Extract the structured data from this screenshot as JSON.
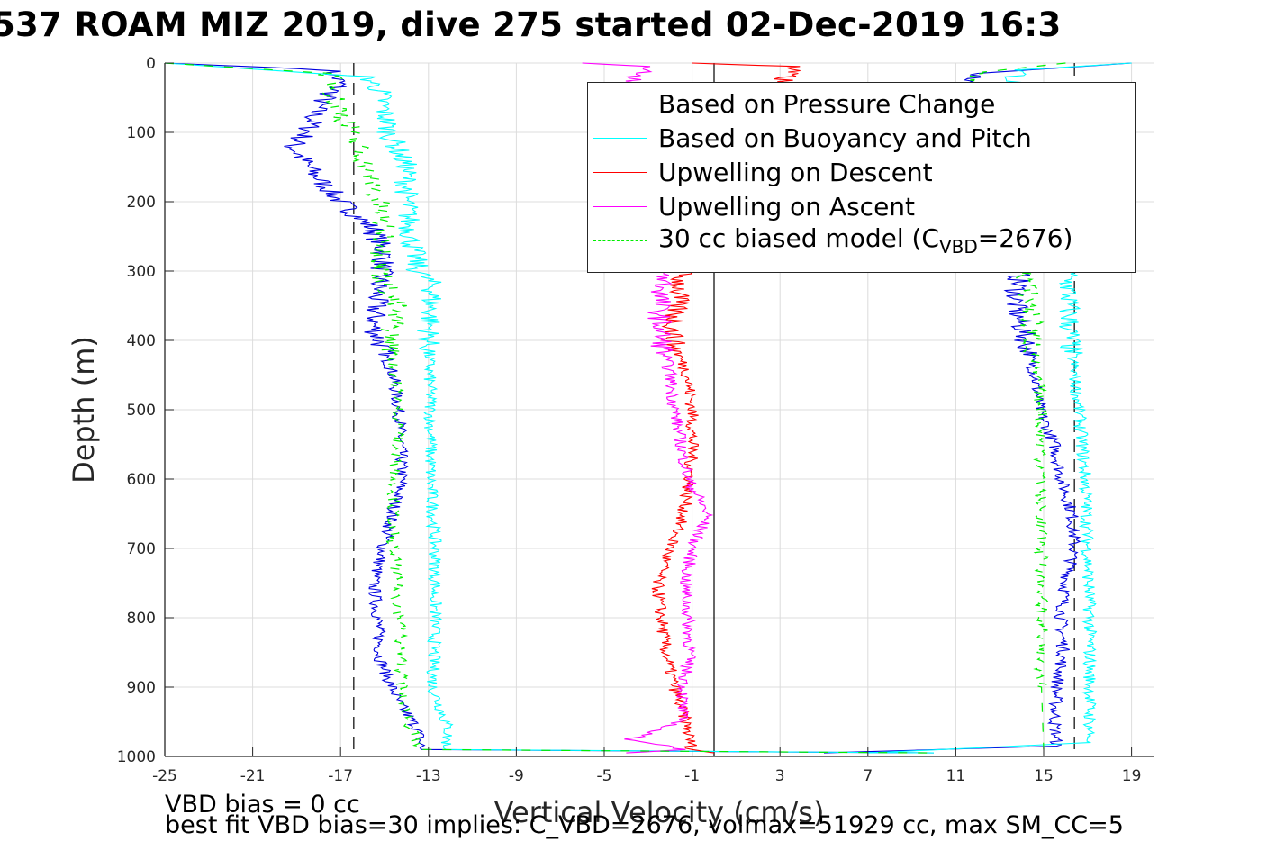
{
  "title": "537 ROAM MIZ 2019, dive 275 started 02-Dec-2019 16:3",
  "footer": {
    "line1": "VBD bias = 0 cc",
    "line2": "best fit VBD bias=30 implies: C_VBD=2676, volmax=51929 cc, max SM_CC=5"
  },
  "legend": {
    "items": [
      {
        "label": "Based on Pressure Change",
        "color": "#0000e0",
        "style": "solid"
      },
      {
        "label": "Based on Buoyancy and Pitch",
        "color": "#00ffff",
        "style": "solid"
      },
      {
        "label": "Upwelling on Descent",
        "color": "#ff0000",
        "style": "solid"
      },
      {
        "label": "Upwelling on Ascent",
        "color": "#ff00ff",
        "style": "solid"
      },
      {
        "label_pre": "30 cc biased model (C",
        "label_sub": "VBD",
        "label_post": "=2676)",
        "color": "#00ee00",
        "style": "dashed"
      }
    ]
  },
  "chart_data": {
    "type": "line",
    "title": "537 ROAM MIZ 2019, dive 275 started 02-Dec-2019 16:3",
    "xlabel": "Vertical Velocity (cm/s)",
    "ylabel": "Depth (m)",
    "xlim": [
      -25,
      20
    ],
    "ylim": [
      0,
      1000
    ],
    "y_reversed": true,
    "grid": true,
    "legend_position": "top-right",
    "xticks": [
      -25,
      -21,
      -17,
      -13,
      -9,
      -5,
      -1,
      3,
      7,
      11,
      15,
      19
    ],
    "yticks": [
      0,
      100,
      200,
      300,
      400,
      500,
      600,
      700,
      800,
      900,
      1000
    ],
    "reference_lines": [
      {
        "x": 0,
        "style": "solid",
        "color": "#000000"
      },
      {
        "x": -16.4,
        "style": "dashed",
        "color": "#000000"
      },
      {
        "x": 16.4,
        "style": "dashed",
        "color": "#000000"
      }
    ],
    "series": [
      {
        "name": "Based on Pressure Change (descent)",
        "color": "#0000e0",
        "style": "solid",
        "depth": [
          0,
          10,
          30,
          60,
          100,
          120,
          160,
          200,
          240,
          280,
          320,
          380,
          450,
          520,
          600,
          680,
          750,
          800,
          860,
          920,
          960,
          990,
          995
        ],
        "velocity": [
          -25,
          -17.5,
          -17,
          -18,
          -18.5,
          -19.2,
          -18.2,
          -17,
          -15.5,
          -15,
          -15.3,
          -15.5,
          -14.6,
          -14.3,
          -14.2,
          -14.9,
          -15.5,
          -15.3,
          -15.2,
          -14.4,
          -13.5,
          -13.3,
          10
        ]
      },
      {
        "name": "Based on Pressure Change (ascent)",
        "color": "#0000e0",
        "style": "solid",
        "depth": [
          0,
          15,
          30,
          100,
          200,
          300,
          350,
          400,
          450,
          500,
          550,
          600,
          650,
          700,
          750,
          800,
          850,
          900,
          950,
          985,
          995
        ],
        "velocity": [
          19,
          12,
          11.5,
          12.2,
          13.1,
          13.9,
          13.7,
          14.2,
          14.6,
          14.8,
          15.5,
          15.8,
          16.3,
          16.4,
          16.0,
          15.8,
          15.9,
          15.6,
          15.5,
          15.6,
          5
        ]
      },
      {
        "name": "Based on Buoyancy and Pitch (descent)",
        "color": "#00ffff",
        "style": "solid",
        "depth": [
          0,
          20,
          40,
          100,
          150,
          200,
          250,
          300,
          320,
          400,
          500,
          600,
          700,
          800,
          900,
          960,
          990,
          995
        ],
        "velocity": [
          -25,
          -15.8,
          -15.2,
          -14.8,
          -14,
          -14,
          -13.8,
          -13.5,
          -12.8,
          -13,
          -12.9,
          -12.9,
          -12.7,
          -12.7,
          -12.8,
          -12.1,
          -12.2,
          10
        ]
      },
      {
        "name": "Based on Buoyancy and Pitch (ascent)",
        "color": "#00ffff",
        "style": "solid",
        "depth": [
          0,
          10,
          30,
          100,
          200,
          300,
          400,
          500,
          600,
          700,
          800,
          900,
          980,
          995
        ],
        "velocity": [
          19,
          14,
          13.5,
          14.1,
          15,
          16.1,
          16.2,
          16.6,
          16.9,
          17,
          17.1,
          17.1,
          17.1,
          7
        ]
      },
      {
        "name": "Upwelling on Descent",
        "color": "#ff0000",
        "style": "solid",
        "depth": [
          0,
          5,
          300,
          350,
          400,
          450,
          500,
          550,
          600,
          650,
          700,
          750,
          800,
          850,
          900,
          950,
          990,
          995
        ],
        "velocity": [
          -1,
          3.5,
          -1.5,
          -1.7,
          -1.9,
          -1.2,
          -1.0,
          -1.0,
          -1.1,
          -1.4,
          -2.0,
          -2.6,
          -2.4,
          -2.2,
          -1.8,
          -1.3,
          -1.0,
          0
        ]
      },
      {
        "name": "Upwelling on Ascent",
        "color": "#ff00ff",
        "style": "solid",
        "depth": [
          0,
          5,
          20,
          300,
          350,
          400,
          450,
          500,
          550,
          600,
          650,
          700,
          750,
          800,
          850,
          900,
          950,
          975,
          990,
          995
        ],
        "velocity": [
          -6,
          -3,
          -3.5,
          -2.2,
          -2.5,
          -2.4,
          -2.0,
          -1.8,
          -1.5,
          -1.2,
          -0.3,
          -1.0,
          -1.3,
          -1.2,
          -1.1,
          -1.4,
          -1.5,
          -3.8,
          -1.3,
          -4
        ]
      },
      {
        "name": "30 cc biased model (descent)",
        "color": "#00ee00",
        "style": "dashed",
        "depth": [
          0,
          15,
          50,
          100,
          150,
          200,
          250,
          300,
          350,
          400,
          500,
          600,
          700,
          800,
          900,
          960,
          990,
          995
        ],
        "velocity": [
          -25,
          -17.5,
          -17.3,
          -16.5,
          -15.8,
          -15.3,
          -15,
          -15.2,
          -14.5,
          -14.7,
          -14.3,
          -14.6,
          -14.6,
          -14.3,
          -14.2,
          -13.8,
          -13.4,
          10
        ]
      },
      {
        "name": "30 cc biased model (ascent)",
        "color": "#00ee00",
        "style": "dashed",
        "depth": [
          0,
          15,
          50,
          100,
          200,
          300,
          400,
          500,
          600,
          700,
          800,
          900,
          990
        ],
        "velocity": [
          16,
          11.7,
          12,
          12.5,
          13.3,
          14.2,
          14.5,
          14.9,
          14.9,
          14.9,
          14.9,
          14.9,
          15
        ]
      }
    ]
  }
}
